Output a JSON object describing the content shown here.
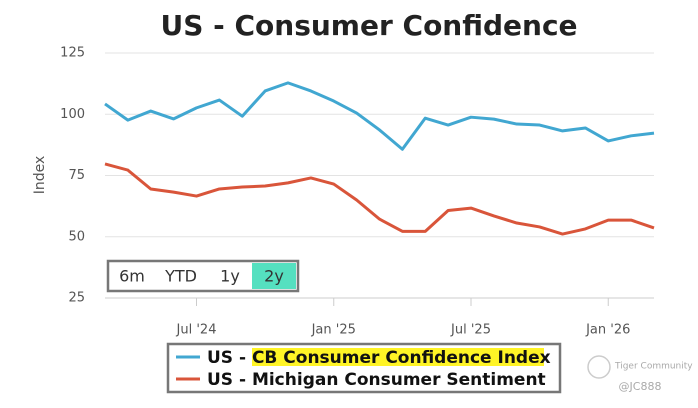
{
  "chart_data": {
    "type": "line",
    "title": "US - Consumer Confidence",
    "y_label": "Index",
    "x": [
      "2024-03",
      "2024-04",
      "2024-05",
      "2024-06",
      "2024-07",
      "2024-08",
      "2024-09",
      "2024-10",
      "2024-11",
      "2024-12",
      "2025-01",
      "2025-02",
      "2025-03",
      "2025-04",
      "2025-05",
      "2025-06",
      "2025-07",
      "2025-08",
      "2025-09",
      "2025-10",
      "2025-11",
      "2025-12",
      "2026-01",
      "2026-02",
      "2026-03"
    ],
    "xlim": [
      "2024-03",
      "2026-03"
    ],
    "xticks": [
      {
        "value": "2024-07",
        "label": "Jul '24"
      },
      {
        "value": "2025-01",
        "label": "Jan '25"
      },
      {
        "value": "2025-07",
        "label": "Jul '25"
      },
      {
        "value": "2026-01",
        "label": "Jan '26"
      }
    ],
    "ylim": [
      25,
      125
    ],
    "yticks": [
      25,
      50,
      75,
      100,
      125
    ],
    "grid": true,
    "series": [
      {
        "name": "US - CB Consumer Confidence Index",
        "color": "#41a7d1",
        "values": [
          104.2,
          97.6,
          101.3,
          98.1,
          102.6,
          105.8,
          99.2,
          109.5,
          112.8,
          109.5,
          105.4,
          100.5,
          93.6,
          85.7,
          98.4,
          95.6,
          98.8,
          98.0,
          96.0,
          95.6,
          93.2,
          94.4,
          89.1,
          91.2,
          92.3
        ]
      },
      {
        "name": "US - Michigan Consumer Sentiment",
        "color": "#d9553a",
        "values": [
          79.7,
          77.2,
          69.5,
          68.2,
          66.6,
          69.5,
          70.3,
          70.7,
          72.0,
          74.0,
          71.5,
          65.0,
          57.2,
          52.2,
          52.2,
          60.7,
          61.7,
          58.5,
          55.6,
          54.0,
          51.1,
          53.2,
          56.8,
          56.8,
          53.6
        ]
      }
    ]
  },
  "range_selector": {
    "buttons": [
      "6m",
      "YTD",
      "1y",
      "2y"
    ],
    "selected": 3
  },
  "watermark": [
    "Tiger Community",
    "@JC888"
  ]
}
